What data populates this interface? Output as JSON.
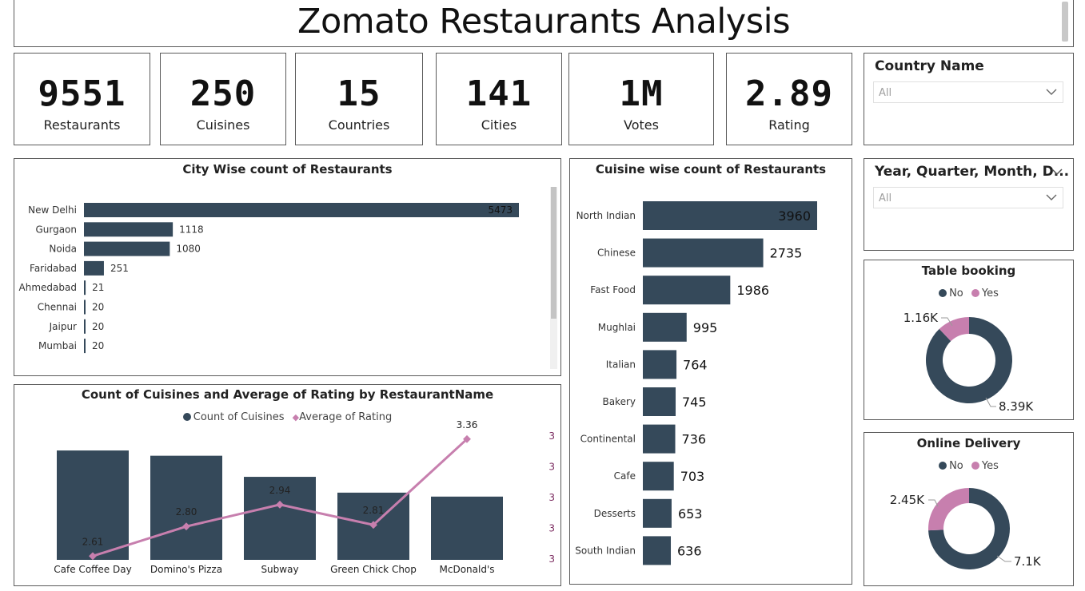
{
  "title": "Zomato Restaurants Analysis",
  "kpis": [
    {
      "value": "9551",
      "label": "Restaurants"
    },
    {
      "value": "250",
      "label": "Cuisines"
    },
    {
      "value": "15",
      "label": "Countries"
    },
    {
      "value": "141",
      "label": "Cities"
    },
    {
      "value": "1M",
      "label": "Votes"
    },
    {
      "value": "2.89",
      "label": "Rating"
    }
  ],
  "slicers": {
    "country": {
      "title": "Country Name",
      "value": "All"
    },
    "date": {
      "title": "Year, Quarter, Month, D...",
      "value": "All"
    }
  },
  "colors": {
    "primary": "#35495a",
    "accent": "#c77fae",
    "border": "#5a5a5a"
  },
  "chart_data": [
    {
      "type": "bar",
      "orientation": "horizontal",
      "title": "City Wise count of Restaurants",
      "categories": [
        "New Delhi",
        "Gurgaon",
        "Noida",
        "Faridabad",
        "Ahmedabad",
        "Chennai",
        "Jaipur",
        "Mumbai"
      ],
      "values": [
        5473,
        1118,
        1080,
        251,
        21,
        20,
        20,
        20
      ],
      "color": "#35495a"
    },
    {
      "type": "bar",
      "orientation": "horizontal",
      "title": "Cuisine wise count of Restaurants",
      "categories": [
        "North Indian",
        "Chinese",
        "Fast Food",
        "Mughlai",
        "Italian",
        "Bakery",
        "Continental",
        "Cafe",
        "Desserts",
        "South Indian"
      ],
      "values": [
        3960,
        2735,
        1986,
        995,
        764,
        745,
        736,
        703,
        653,
        636
      ],
      "color": "#35495a"
    },
    {
      "type": "bar",
      "title": "Count of Cuisines and Average of Rating by RestaurantName",
      "categories": [
        "Cafe Coffee Day",
        "Domino's Pizza",
        "Subway",
        "Green Chick Chop",
        "McDonald's"
      ],
      "series": [
        {
          "name": "Count of Cuisines",
          "type": "bar",
          "values": [
            83,
            79,
            63,
            51,
            48
          ],
          "color": "#35495a"
        },
        {
          "name": "Average of Rating",
          "type": "line",
          "values": [
            2.61,
            2.8,
            2.94,
            2.81,
            3.36
          ],
          "labels": [
            "2.61",
            "2.80",
            "2.94",
            "2.81",
            "3.36"
          ],
          "color": "#c77fae"
        }
      ],
      "y2_ticks": [
        "3",
        "3",
        "3",
        "3",
        "3"
      ],
      "legend": "top-center"
    },
    {
      "type": "pie",
      "donut": true,
      "title": "Table booking",
      "legend": [
        {
          "name": "No",
          "color": "#35495a"
        },
        {
          "name": "Yes",
          "color": "#c77fae"
        }
      ],
      "slices": [
        {
          "name": "No",
          "value": 8393,
          "label": "8.39K"
        },
        {
          "name": "Yes",
          "value": 1158,
          "label": "1.16K"
        }
      ]
    },
    {
      "type": "pie",
      "donut": true,
      "title": "Online Delivery",
      "legend": [
        {
          "name": "No",
          "color": "#35495a"
        },
        {
          "name": "Yes",
          "color": "#c77fae"
        }
      ],
      "slices": [
        {
          "name": "No",
          "value": 7100,
          "label": "7.1K"
        },
        {
          "name": "Yes",
          "value": 2451,
          "label": "2.45K"
        }
      ]
    }
  ]
}
